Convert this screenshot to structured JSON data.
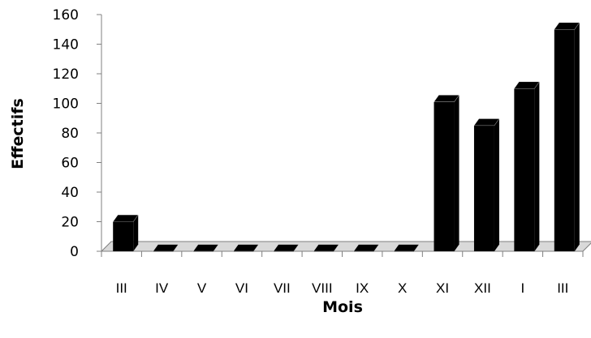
{
  "chart_data": {
    "type": "bar",
    "style": "3d-column",
    "categories": [
      "III",
      "IV",
      "V",
      "VI",
      "VII",
      "VIII",
      "IX",
      "X",
      "XI",
      "XII",
      "I",
      "III"
    ],
    "values": [
      20,
      0,
      0,
      0,
      0,
      0,
      0,
      0,
      101,
      85,
      110,
      150
    ],
    "ylabel": "Effectifs",
    "xlabel": "Mois",
    "ylim": [
      0,
      160
    ],
    "yticks": [
      0,
      20,
      40,
      60,
      80,
      100,
      120,
      140,
      160
    ],
    "grid": false,
    "legend": "none",
    "bar_color": "#000000",
    "floor_color": "#d9d9d9"
  }
}
